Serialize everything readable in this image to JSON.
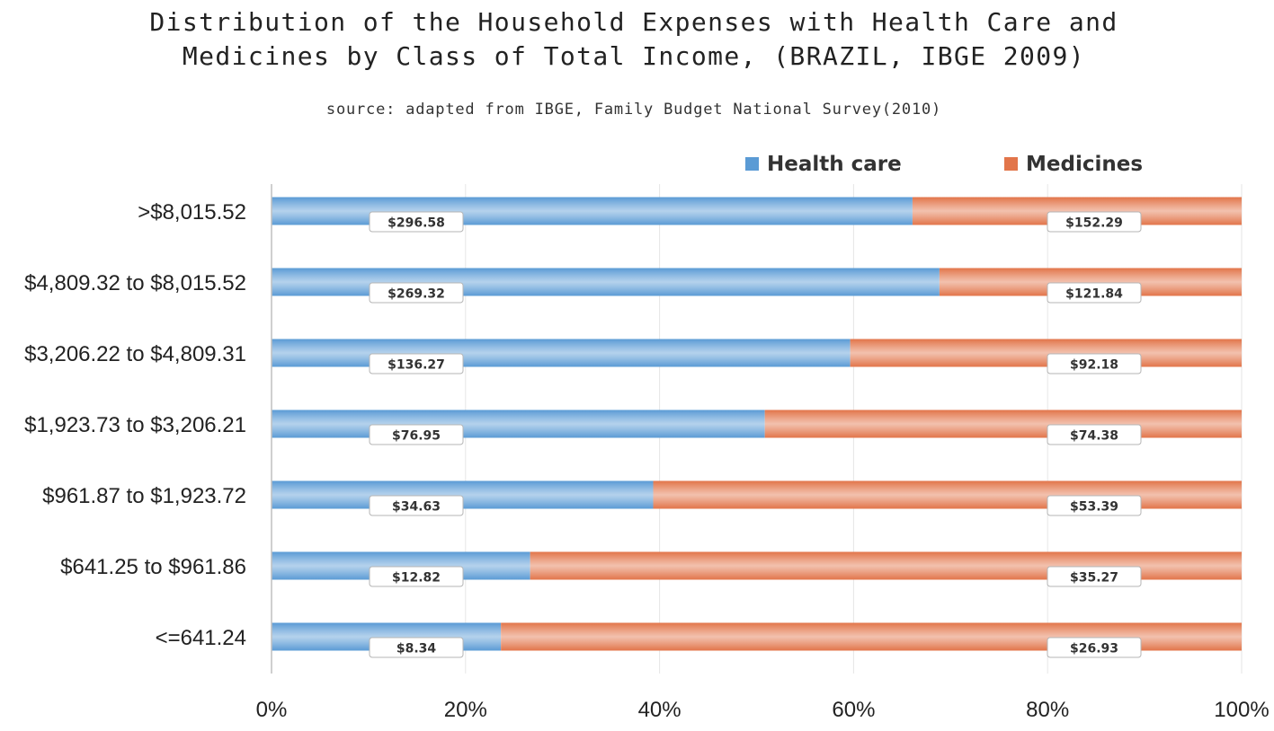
{
  "chart_data": {
    "type": "bar",
    "orientation": "horizontal",
    "stacked": "percent",
    "title": "Distribution of the Household Expenses with Health Care and\nMedicines by Class of Total Income, (BRAZIL, IBGE 2009)",
    "subtitle": "source: adapted from IBGE, Family Budget National Survey(2010)",
    "categories": [
      ">$8,015.52",
      "$4,809.32 to $8,015.52",
      "$3,206.22 to $4,809.31",
      "$1,923.73 to $3,206.21",
      "$961.87 to $1,923.72",
      "$641.25 to $961.86",
      "<=641.24"
    ],
    "series": [
      {
        "name": "Health care",
        "color": "#5b9bd5",
        "values": [
          296.58,
          269.32,
          136.27,
          76.95,
          34.63,
          12.82,
          8.34
        ],
        "labels": [
          "$296.58",
          "$269.32",
          "$136.27",
          "$76.95",
          "$34.63",
          "$12.82",
          "$8.34"
        ]
      },
      {
        "name": "Medicines",
        "color": "#e2754a",
        "values": [
          152.29,
          121.84,
          92.18,
          74.38,
          53.39,
          35.27,
          26.93
        ],
        "labels": [
          "$152.29",
          "$121.84",
          "$92.18",
          "$74.38",
          "$53.39",
          "$35.27",
          "$26.93"
        ]
      }
    ],
    "xticks": [
      "0%",
      "20%",
      "40%",
      "60%",
      "80%",
      "100%"
    ],
    "xlim": [
      0,
      100
    ],
    "legend": "top-right",
    "grid": true
  }
}
